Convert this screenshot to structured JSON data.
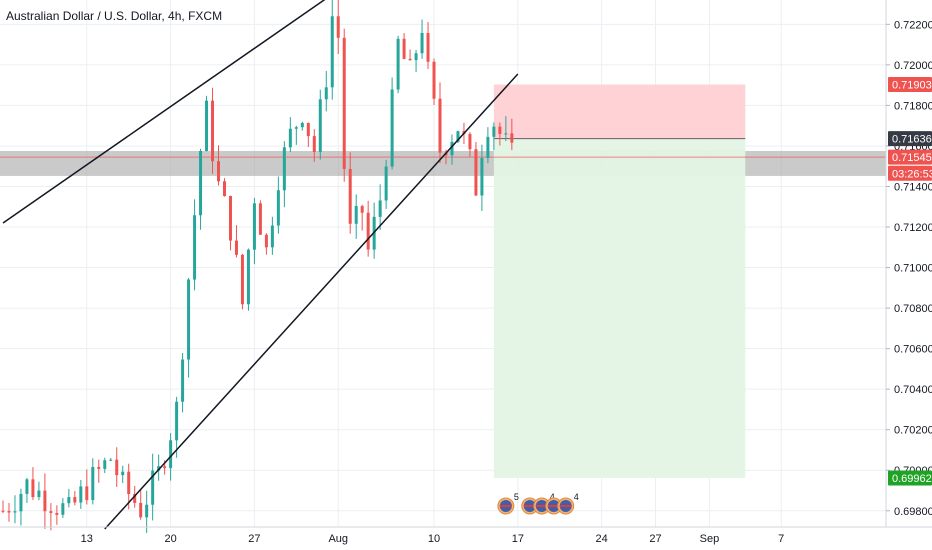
{
  "header": {
    "title": "Australian Dollar / U.S. Dollar, 4h, FXCM"
  },
  "colors": {
    "up": "#26a69a",
    "down": "#ef5350",
    "grid": "#eceff2",
    "axis_text": "#131722",
    "stop_zone": "#ffcdd2",
    "target_zone": "#e4f4e4",
    "support_zone": "#9e9e9e",
    "trendline": "#131722"
  },
  "chart_data": {
    "type": "candlestick",
    "symbol": "AUDUSD",
    "timeframe": "4h",
    "ylim": [
      0.6972,
      0.7232
    ],
    "y_ticks": [
      "0.72200",
      "0.72000",
      "0.71800",
      "0.71600",
      "0.71400",
      "0.71200",
      "0.71000",
      "0.70800",
      "0.70600",
      "0.70400",
      "0.70200",
      "0.70000",
      "0.69800"
    ],
    "x_ticks": [
      {
        "label": "13",
        "slot": 14
      },
      {
        "label": "20",
        "slot": 28
      },
      {
        "label": "27",
        "slot": 42
      },
      {
        "label": "Aug",
        "slot": 56
      },
      {
        "label": "10",
        "slot": 72
      },
      {
        "label": "17",
        "slot": 86
      },
      {
        "label": "24",
        "slot": 100
      },
      {
        "label": "27",
        "slot": 109
      },
      {
        "label": "Sep",
        "slot": 118
      },
      {
        "label": "7",
        "slot": 130
      }
    ],
    "slot_count": 148,
    "path": [
      [
        0,
        0.698
      ],
      [
        4,
        0.6993
      ],
      [
        8,
        0.6985
      ],
      [
        11,
        0.6979
      ],
      [
        14,
        0.6992
      ],
      [
        18,
        0.7006
      ],
      [
        20,
        0.6992
      ],
      [
        23,
        0.6981
      ],
      [
        26,
        0.6998
      ],
      [
        29,
        0.703
      ],
      [
        31,
        0.7095
      ],
      [
        33,
        0.7158
      ],
      [
        34,
        0.7176
      ],
      [
        36,
        0.714
      ],
      [
        38,
        0.712
      ],
      [
        40,
        0.7082
      ],
      [
        42,
        0.7136
      ],
      [
        44,
        0.7108
      ],
      [
        46,
        0.7146
      ],
      [
        48,
        0.7165
      ],
      [
        50,
        0.7178
      ],
      [
        52,
        0.7158
      ],
      [
        54,
        0.7195
      ],
      [
        55,
        0.7224
      ],
      [
        56,
        0.7214
      ],
      [
        57,
        0.715
      ],
      [
        58,
        0.7117
      ],
      [
        60,
        0.7128
      ],
      [
        61,
        0.7108
      ],
      [
        63,
        0.7134
      ],
      [
        65,
        0.718
      ],
      [
        66,
        0.721
      ],
      [
        68,
        0.7195
      ],
      [
        70,
        0.722
      ],
      [
        71,
        0.7195
      ],
      [
        72,
        0.7178
      ],
      [
        73,
        0.7158
      ],
      [
        74,
        0.7162
      ],
      [
        76,
        0.717
      ],
      [
        77,
        0.7162
      ],
      [
        78,
        0.7152
      ],
      [
        79,
        0.714
      ],
      [
        80,
        0.716
      ],
      [
        81,
        0.7172
      ],
      [
        82,
        0.7172
      ],
      [
        83,
        0.7166
      ],
      [
        84,
        0.716
      ],
      [
        85,
        0.71545
      ]
    ],
    "trendlines": [
      {
        "from": [
          0,
          0.7122
        ],
        "to": [
          59,
          0.7243
        ]
      },
      {
        "from": [
          17,
          0.6971
        ],
        "to": [
          86,
          0.71955
        ]
      }
    ],
    "zones": {
      "support": {
        "from": 0.71575,
        "to": 0.71452
      },
      "stop": {
        "from_slot": 82,
        "to_slot": 124,
        "top": 0.71903,
        "bottom": 0.71636
      },
      "target": {
        "from_slot": 82,
        "to_slot": 124,
        "top": 0.71636,
        "bottom": 0.69962
      }
    },
    "price_badges": [
      {
        "price": 0.71903,
        "text": "0.71903",
        "color": "#ef5350"
      },
      {
        "price": 0.71636,
        "text": "0.71636",
        "color": "#363a45"
      },
      {
        "price": 0.71545,
        "text": "0.71545",
        "color": "#ef5350"
      },
      {
        "price": 0.71465,
        "text": "03:26:53",
        "color": "#ef5350"
      },
      {
        "price": 0.69962,
        "text": "0.69962",
        "color": "#1fa324"
      }
    ],
    "events": [
      {
        "slot": 84,
        "count": "5"
      },
      {
        "slot": 88,
        "count": ""
      },
      {
        "slot": 90,
        "count": "4"
      },
      {
        "slot": 92,
        "count": ""
      },
      {
        "slot": 94,
        "count": "4"
      }
    ]
  }
}
